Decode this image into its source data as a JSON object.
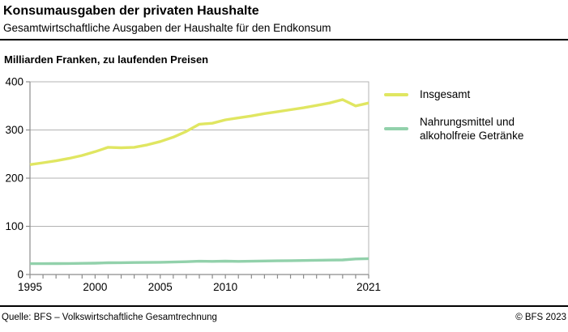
{
  "header": {
    "title": "Konsumausgaben der privaten Haushalte",
    "subtitle": "Gesamtwirtschaftliche Ausgaben der Haushalte für den Endkonsum"
  },
  "chart": {
    "unit_label": "Milliarden Franken, zu laufenden Preisen"
  },
  "chart_data": {
    "type": "line",
    "title": "Konsumausgaben der privaten Haushalte",
    "ylabel": "Milliarden Franken, zu laufenden Preisen",
    "xlabel": "",
    "grid": "horizontal",
    "legend_position": "right",
    "ylim": [
      0,
      400
    ],
    "yticks": [
      0,
      100,
      200,
      300,
      400
    ],
    "xtick_labeled": [
      1995,
      2000,
      2005,
      2010,
      2021
    ],
    "x": [
      1995,
      1996,
      1997,
      1998,
      1999,
      2000,
      2001,
      2002,
      2003,
      2004,
      2005,
      2006,
      2007,
      2008,
      2009,
      2010,
      2011,
      2012,
      2013,
      2014,
      2015,
      2016,
      2017,
      2018,
      2019,
      2020,
      2021
    ],
    "series": [
      {
        "name": "Insgesamt",
        "color": "#e0e661",
        "values": [
          228,
          232,
          236,
          241,
          247,
          255,
          264,
          263,
          264,
          269,
          276,
          285,
          297,
          312,
          314,
          321,
          325,
          329,
          334,
          338,
          342,
          346,
          351,
          356,
          363,
          350,
          356
        ]
      },
      {
        "name": "Nahrungsmittel und alkoholfreie Getränke",
        "color": "#92d1ab",
        "values": [
          22.5,
          22.5,
          22.7,
          22.9,
          23.2,
          23.6,
          24.3,
          24.6,
          24.8,
          25,
          25.4,
          25.8,
          26.5,
          27.6,
          27.3,
          27.7,
          27.3,
          27.6,
          28.1,
          28.4,
          28.7,
          29.1,
          29.5,
          30,
          30.3,
          32.3,
          33
        ]
      }
    ],
    "axis_color": "#8c8c8c",
    "grid_color": "#b3b3b3"
  },
  "legend": {
    "items": [
      {
        "label": "Insgesamt",
        "color": "#e0e661"
      },
      {
        "label": "Nahrungsmittel und alkoholfreie Getränke",
        "color": "#92d1ab"
      }
    ]
  },
  "footer": {
    "source": "Quelle: BFS – Volkswirtschaftliche Gesamtrechnung",
    "copyright": "© BFS 2023"
  }
}
